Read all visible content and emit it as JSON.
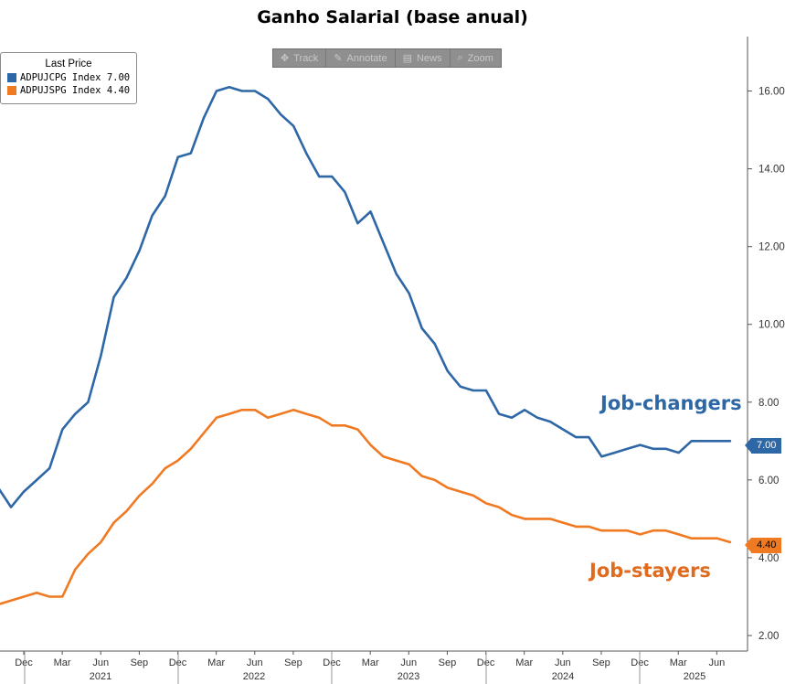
{
  "title": "Ganho Salarial (base anual)",
  "legend": {
    "header": "Last Price",
    "items": [
      {
        "label": "ADPUJCPG Index 7.00",
        "color": "#2e67a6"
      },
      {
        "label": "ADPUJSPG Index 4.40",
        "color": "#f07a22"
      }
    ]
  },
  "toolbar": {
    "items": [
      {
        "label": "Track",
        "icon": "crosshair-icon",
        "glyph": "✥"
      },
      {
        "label": "Annotate",
        "icon": "pencil-icon",
        "glyph": "✎"
      },
      {
        "label": "News",
        "icon": "news-icon",
        "glyph": "▤"
      },
      {
        "label": "Zoom",
        "icon": "zoom-icon",
        "glyph": "⌕"
      }
    ]
  },
  "annotations": {
    "changers": "Job-changers",
    "stayers": "Job-stayers"
  },
  "last_value_tags": {
    "changers": "7.00",
    "stayers": "4.40"
  },
  "chart_data": {
    "type": "line",
    "title": "Ganho Salarial (base anual)",
    "xlabel": "",
    "ylabel": "",
    "ylim": [
      1.6,
      17.4
    ],
    "y_ticks": [
      "2.00",
      "4.00",
      "6.00",
      "8.00",
      "10.00",
      "12.00",
      "14.00",
      "16.00"
    ],
    "y_axis_side": "right",
    "x_month_ticks": [
      "Dec",
      "Mar",
      "Jun",
      "Sep",
      "Dec",
      "Mar",
      "Jun",
      "Sep",
      "Dec",
      "Mar",
      "Jun",
      "Sep",
      "Dec",
      "Mar",
      "Jun",
      "Sep",
      "Dec",
      "Mar",
      "Jun"
    ],
    "x_year_labels": [
      "2021",
      "2022",
      "2023",
      "2024",
      "2025"
    ],
    "x": [
      "2020-10",
      "2020-11",
      "2020-12",
      "2021-01",
      "2021-02",
      "2021-03",
      "2021-04",
      "2021-05",
      "2021-06",
      "2021-07",
      "2021-08",
      "2021-09",
      "2021-10",
      "2021-11",
      "2021-12",
      "2022-01",
      "2022-02",
      "2022-03",
      "2022-04",
      "2022-05",
      "2022-06",
      "2022-07",
      "2022-08",
      "2022-09",
      "2022-10",
      "2022-11",
      "2022-12",
      "2023-01",
      "2023-02",
      "2023-03",
      "2023-04",
      "2023-05",
      "2023-06",
      "2023-07",
      "2023-08",
      "2023-09",
      "2023-10",
      "2023-11",
      "2023-12",
      "2024-01",
      "2024-02",
      "2024-03",
      "2024-04",
      "2024-05",
      "2024-06",
      "2024-07",
      "2024-08",
      "2024-09",
      "2024-10",
      "2024-11",
      "2024-12",
      "2025-01",
      "2025-02",
      "2025-03",
      "2025-04",
      "2025-05",
      "2025-06",
      "2025-07"
    ],
    "series": [
      {
        "name": "ADPUJCPG Index",
        "color": "#2e67a6",
        "values": [
          5.8,
          5.3,
          5.7,
          6.0,
          6.3,
          7.3,
          7.7,
          8.0,
          9.2,
          10.7,
          11.2,
          11.9,
          12.8,
          13.3,
          14.3,
          14.4,
          15.3,
          16.0,
          16.1,
          16.0,
          16.0,
          15.8,
          15.4,
          15.1,
          14.4,
          13.8,
          13.8,
          13.4,
          12.6,
          12.9,
          12.1,
          11.3,
          10.8,
          9.9,
          9.5,
          8.8,
          8.4,
          8.3,
          8.3,
          7.7,
          7.6,
          7.8,
          7.6,
          7.5,
          7.3,
          7.1,
          7.1,
          6.6,
          6.7,
          6.8,
          6.9,
          6.8,
          6.8,
          6.7,
          7.0,
          7.0,
          7.0,
          7.0
        ]
      },
      {
        "name": "ADPUJSPG Index",
        "color": "#f07a22",
        "values": [
          2.8,
          2.9,
          3.0,
          3.1,
          3.0,
          3.0,
          3.7,
          4.1,
          4.4,
          4.9,
          5.2,
          5.6,
          5.9,
          6.3,
          6.5,
          6.8,
          7.2,
          7.6,
          7.7,
          7.8,
          7.8,
          7.6,
          7.7,
          7.8,
          7.7,
          7.6,
          7.4,
          7.4,
          7.3,
          6.9,
          6.6,
          6.5,
          6.4,
          6.1,
          6.0,
          5.8,
          5.7,
          5.6,
          5.4,
          5.3,
          5.1,
          5.0,
          5.0,
          5.0,
          4.9,
          4.8,
          4.8,
          4.7,
          4.7,
          4.7,
          4.6,
          4.7,
          4.7,
          4.6,
          4.5,
          4.5,
          4.5,
          4.4
        ]
      }
    ]
  }
}
